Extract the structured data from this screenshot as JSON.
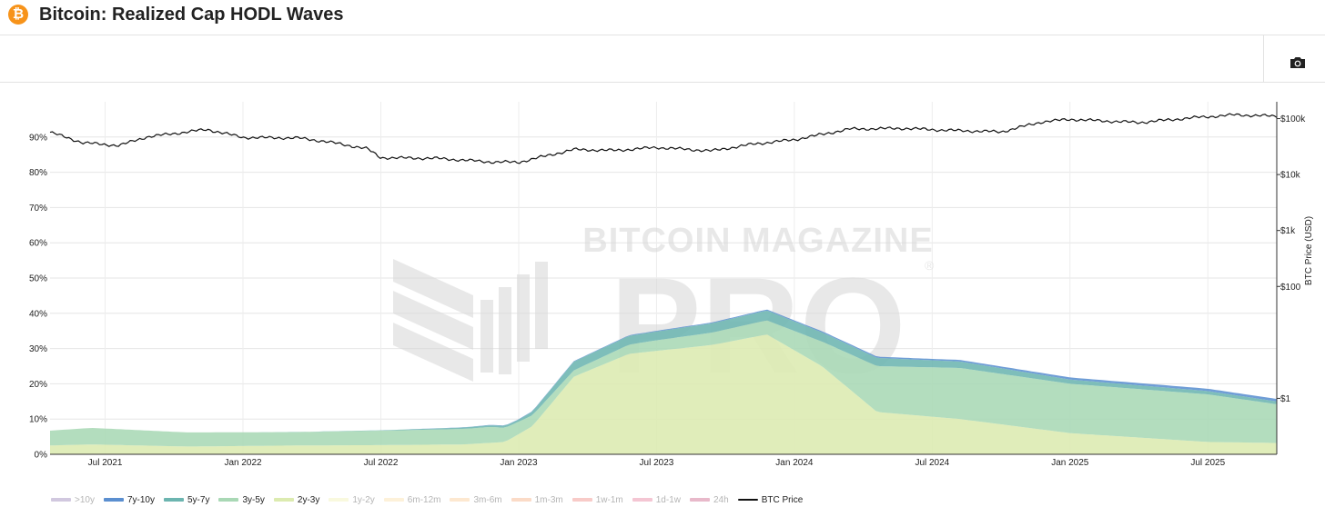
{
  "header": {
    "title": "Bitcoin: Realized Cap HODL Waves",
    "logo_glyph": "₿"
  },
  "toolbar": {
    "camera_icon": "camera-icon"
  },
  "watermark": {
    "line1": "BITCOIN MAGAZINE",
    "line2": "PRO",
    "mark": "®"
  },
  "chart_data": {
    "type": "area",
    "title": "Bitcoin: Realized Cap HODL Waves",
    "x_range": [
      "2021-04",
      "2025-10"
    ],
    "x_ticks": [
      "Jul 2021",
      "Jan 2022",
      "Jul 2022",
      "Jan 2023",
      "Jul 2023",
      "Jan 2024",
      "Jul 2024",
      "Jan 2025",
      "Jul 2025"
    ],
    "x_tick_times": [
      2021.5,
      2022.0,
      2022.5,
      2023.0,
      2023.5,
      2024.0,
      2024.5,
      2025.0,
      2025.5
    ],
    "ylabel_left": "",
    "ylim_left": [
      0,
      100
    ],
    "y_ticks_left": [
      "0%",
      "10%",
      "20%",
      "30%",
      "40%",
      "50%",
      "60%",
      "70%",
      "80%",
      "90%"
    ],
    "y_tick_values_left": [
      0,
      10,
      20,
      30,
      40,
      50,
      60,
      70,
      80,
      90
    ],
    "ylabel_right": "BTC Price (USD)",
    "y_scale_right": "log",
    "y_ticks_right": [
      "$1",
      "$100",
      "$1k",
      "$10k",
      "$100k"
    ],
    "y_tick_values_right": [
      1,
      100,
      1000,
      10000,
      100000
    ],
    "grid": true,
    "stacked_series": [
      {
        "name": "7y-10y",
        "color": "#5b8fd0",
        "x": [
          2021.3,
          2022.0,
          2022.5,
          2023.0,
          2023.5,
          2024.0,
          2024.5,
          2025.0,
          2025.75
        ],
        "values": [
          0.0,
          0.0,
          0.0,
          0.1,
          0.2,
          0.3,
          0.4,
          0.6,
          0.7
        ]
      },
      {
        "name": "5y-7y",
        "color": "#6cb5b0",
        "x": [
          2021.3,
          2022.0,
          2022.5,
          2023.0,
          2023.2,
          2023.5,
          2023.9,
          2024.2,
          2024.5,
          2025.0,
          2025.75
        ],
        "values": [
          0.0,
          0.0,
          0.1,
          0.6,
          2.5,
          2.5,
          2.8,
          2.5,
          2.0,
          1.2,
          0.8
        ]
      },
      {
        "name": "3y-5y",
        "color": "#a9d8b5",
        "x": [
          2021.3,
          2021.45,
          2021.8,
          2022.2,
          2022.6,
          2022.9,
          2023.0,
          2023.2,
          2023.5,
          2023.9,
          2024.1,
          2024.3,
          2024.6,
          2025.0,
          2025.5,
          2025.75
        ],
        "values": [
          4.2,
          4.7,
          4.0,
          3.8,
          4.2,
          4.5,
          3.5,
          1.8,
          3.0,
          4.0,
          7.0,
          13.0,
          14.5,
          14.0,
          13.5,
          11.0
        ]
      },
      {
        "name": "2y-3y",
        "color": "#dcebb0",
        "x": [
          2021.3,
          2021.45,
          2021.8,
          2022.2,
          2022.5,
          2022.8,
          2022.95,
          2023.05,
          2023.2,
          2023.4,
          2023.7,
          2023.9,
          2024.1,
          2024.3,
          2024.6,
          2025.0,
          2025.5,
          2025.75
        ],
        "values": [
          2.5,
          2.8,
          2.2,
          2.5,
          2.6,
          2.8,
          3.5,
          8.0,
          22.0,
          28.5,
          31.0,
          34.0,
          25.0,
          12.0,
          10.0,
          6.0,
          3.5,
          3.2
        ]
      }
    ],
    "legend_series": [
      {
        "name": ">10y",
        "color": "#b3a3c9",
        "visible": false
      },
      {
        "name": "7y-10y",
        "color": "#5b8fd0",
        "visible": true
      },
      {
        "name": "5y-7y",
        "color": "#6cb5b0",
        "visible": true
      },
      {
        "name": "3y-5y",
        "color": "#a9d8b5",
        "visible": true
      },
      {
        "name": "2y-3y",
        "color": "#dcebb0",
        "visible": true
      },
      {
        "name": "1y-2y",
        "color": "#f5f5c8",
        "visible": false
      },
      {
        "name": "6m-12m",
        "color": "#fbe8c0",
        "visible": false
      },
      {
        "name": "3m-6m",
        "color": "#fbd9b0",
        "visible": false
      },
      {
        "name": "1m-3m",
        "color": "#f8c3a2",
        "visible": false
      },
      {
        "name": "1w-1m",
        "color": "#f4a9a3",
        "visible": false
      },
      {
        "name": "1d-1w",
        "color": "#eda0b5",
        "visible": false
      },
      {
        "name": "24h",
        "color": "#d88aa6",
        "visible": false
      },
      {
        "name": "BTC Price",
        "color": "#111111",
        "visible": true
      }
    ],
    "price_series": {
      "name": "BTC Price",
      "color": "#111111",
      "x": [
        2021.3,
        2021.42,
        2021.55,
        2021.65,
        2021.87,
        2022.0,
        2022.2,
        2022.3,
        2022.45,
        2022.5,
        2022.7,
        2022.9,
        2023.0,
        2023.2,
        2023.35,
        2023.5,
        2023.7,
        2023.85,
        2024.0,
        2024.2,
        2024.4,
        2024.55,
        2024.75,
        2024.9,
        2025.0,
        2025.25,
        2025.45,
        2025.6,
        2025.75
      ],
      "values": [
        57000,
        37000,
        33000,
        47000,
        64000,
        46000,
        45000,
        39000,
        29000,
        20000,
        19500,
        16800,
        16600,
        28000,
        27000,
        30500,
        26500,
        35000,
        42000,
        65000,
        67000,
        62000,
        58000,
        88000,
        97000,
        85000,
        104000,
        117000,
        110000
      ]
    }
  }
}
